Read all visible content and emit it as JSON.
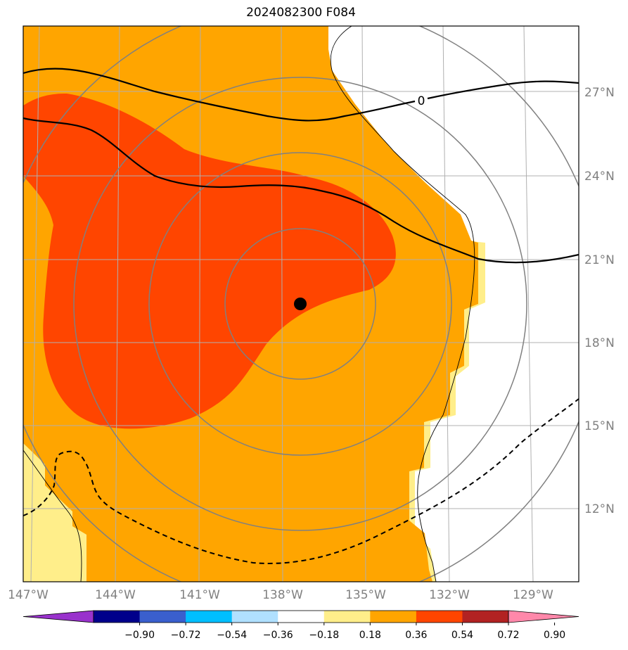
{
  "title": "2024082300 F084",
  "colors": {
    "background": "#ffffff",
    "outer_fill": "#ffa500",
    "inner_fill": "#ff4500",
    "edge_fill": "#ffee8a",
    "range_rings": "#808080",
    "gridlines": "#b0b0b0",
    "contour": "#000000",
    "center_marker": "#000000"
  },
  "lon_labels": [
    "147°W",
    "144°W",
    "141°W",
    "138°W",
    "135°W",
    "132°W",
    "129°W"
  ],
  "lat_labels": [
    "27°N",
    "24°N",
    "21°N",
    "18°N",
    "15°N",
    "12°N"
  ],
  "contour_labels": [
    {
      "text": "0"
    }
  ],
  "center_marker": {
    "lon_w": 137.0,
    "lat_n": 19.4
  },
  "colorbar": {
    "ticks": [
      "−0.90",
      "−0.72",
      "−0.54",
      "−0.36",
      "−0.18",
      "0.18",
      "0.36",
      "0.54",
      "0.72",
      "0.90"
    ],
    "colors": [
      "#9932cc",
      "#00008b",
      "#3a5fcd",
      "#00bfff",
      "#b0e0ff",
      "#ffffff",
      "#ffee8a",
      "#ffa500",
      "#ff4500",
      "#b22222",
      "#ff88aa"
    ],
    "extend": "both"
  }
}
